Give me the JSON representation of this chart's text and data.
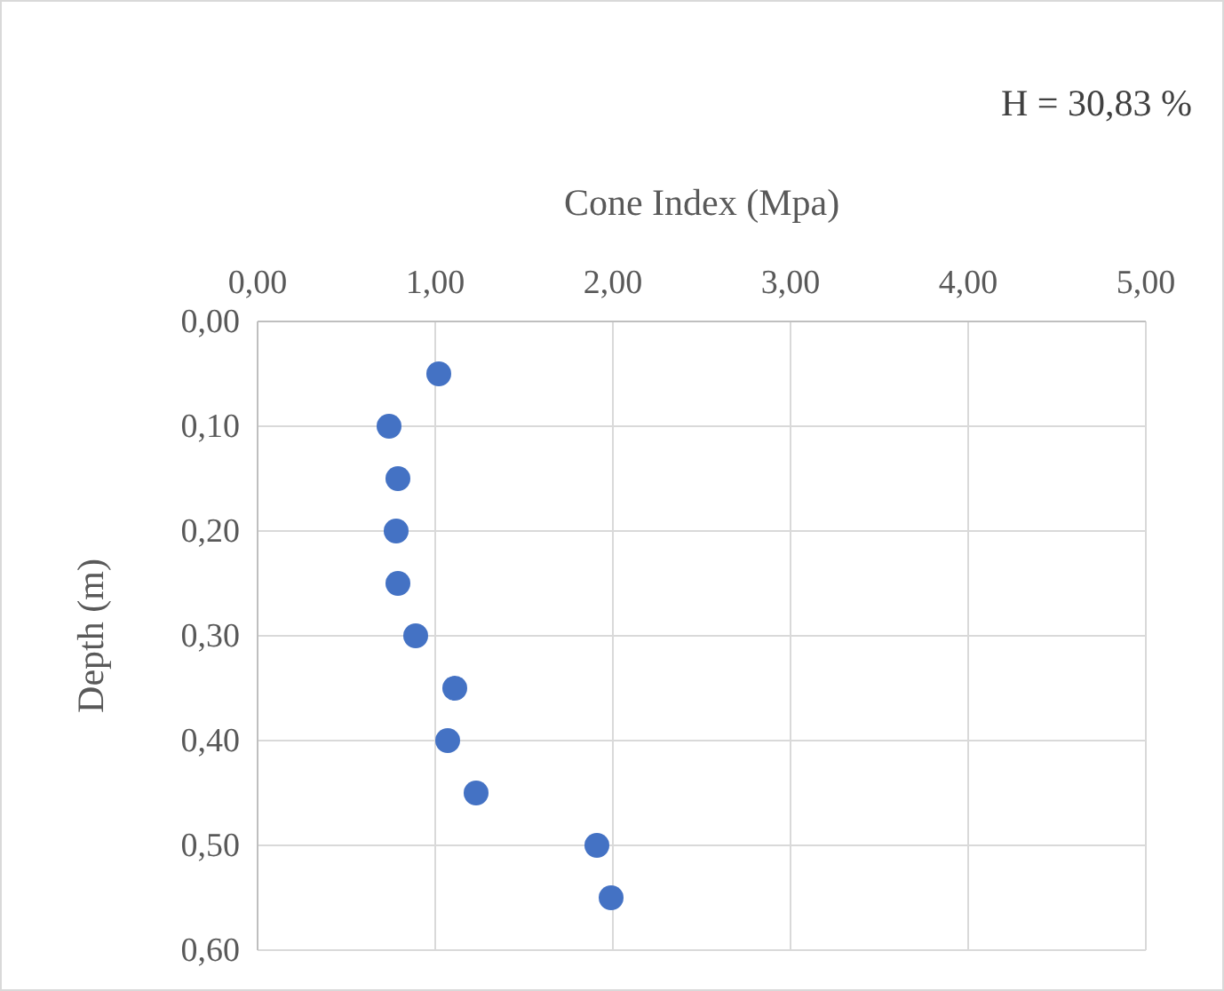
{
  "chart_data": {
    "type": "scatter",
    "xlabel": "Cone Index (Mpa)",
    "ylabel": "Depth (m)",
    "annotations": [
      "H = 30,83 %"
    ],
    "x": [
      1.02,
      0.74,
      0.79,
      0.78,
      0.79,
      0.89,
      1.11,
      1.07,
      1.23,
      1.91,
      1.99
    ],
    "values": [
      0.05,
      0.1,
      0.15,
      0.2,
      0.25,
      0.3,
      0.35,
      0.4,
      0.45,
      0.5,
      0.55
    ],
    "color": "#4472c4",
    "marker": "circle",
    "grid": true,
    "xlim": [
      0,
      5
    ],
    "xticks": [
      {
        "value": 0,
        "label": "0,00"
      },
      {
        "value": 1,
        "label": "1,00"
      },
      {
        "value": 2,
        "label": "2,00"
      },
      {
        "value": 3,
        "label": "3,00"
      },
      {
        "value": 4,
        "label": "4,00"
      },
      {
        "value": 5,
        "label": "5,00"
      }
    ],
    "ylim": [
      0.6,
      0
    ],
    "yticks": [
      {
        "value": 0,
        "label": "0,00"
      },
      {
        "value": 0.1,
        "label": "0,10"
      },
      {
        "value": 0.2,
        "label": "0,20"
      },
      {
        "value": 0.3,
        "label": "0,30"
      },
      {
        "value": 0.4,
        "label": "0,40"
      },
      {
        "value": 0.5,
        "label": "0,50"
      },
      {
        "value": 0.6,
        "label": "0,60"
      }
    ]
  }
}
